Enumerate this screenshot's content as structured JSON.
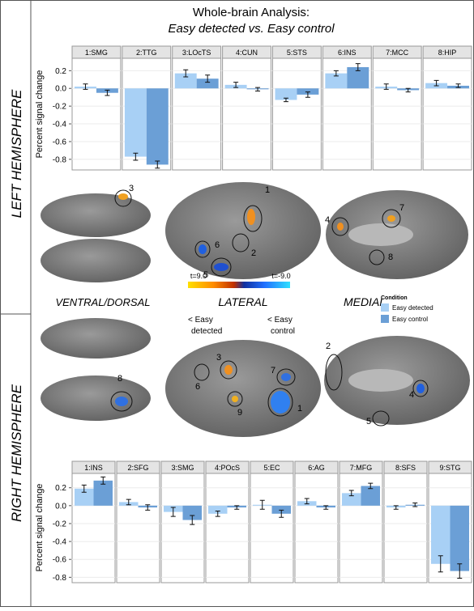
{
  "chart_data": [
    {
      "type": "bar",
      "title": "Whole-brain Analysis:",
      "subtitle": "Easy detected vs. Easy control",
      "hemisphere": "LEFT HEMISPHERE",
      "ylabel": "Percent signal change",
      "legend_title": "Condition",
      "categories": [
        "1:SMG",
        "2:TTG",
        "3:LOcTS",
        "4:CUN",
        "5:STS",
        "6:INS",
        "7:MCC",
        "8:HIP"
      ],
      "series": [
        {
          "name": "Easy detected",
          "color": "#a8d0f5",
          "values": [
            0.02,
            -0.77,
            0.17,
            0.04,
            -0.13,
            0.17,
            0.02,
            0.06
          ],
          "errors": [
            0.03,
            0.04,
            0.04,
            0.03,
            0.02,
            0.03,
            0.03,
            0.03
          ]
        },
        {
          "name": "Easy control",
          "color": "#6b9fd6",
          "values": [
            -0.05,
            -0.86,
            0.11,
            -0.01,
            -0.07,
            0.24,
            -0.02,
            0.03
          ],
          "errors": [
            0.03,
            0.04,
            0.04,
            0.02,
            0.03,
            0.04,
            0.02,
            0.02
          ]
        }
      ],
      "ylim": [
        -0.92,
        0.34
      ],
      "yticks": [
        -0.8,
        -0.6,
        -0.4,
        -0.2,
        {
          "value": 0,
          "label": "0.0"
        },
        0.2
      ],
      "grid": true
    },
    {
      "type": "bar",
      "hemisphere": "RIGHT HEMISPHERE",
      "ylabel": "Percent signal change",
      "categories": [
        "1:INS",
        "2:SFG",
        "3:SMG",
        "4:POcS",
        "5:EC",
        "6:AG",
        "7:MFG",
        "8:SFS",
        "9:STG"
      ],
      "series": [
        {
          "color": "#a8d0f5",
          "values": [
            0.19,
            0.04,
            -0.07,
            -0.09,
            0.01,
            0.05,
            0.14,
            -0.02,
            -0.65
          ],
          "errors": [
            0.04,
            0.03,
            0.05,
            0.03,
            0.05,
            0.03,
            0.03,
            0.02,
            0.09
          ]
        },
        {
          "color": "#6b9fd6",
          "values": [
            0.28,
            -0.02,
            -0.16,
            -0.02,
            -0.09,
            -0.02,
            0.22,
            0.01,
            -0.73
          ],
          "errors": [
            0.04,
            0.03,
            0.05,
            0.02,
            0.04,
            0.02,
            0.03,
            0.02,
            0.08
          ]
        }
      ],
      "ylim": [
        -0.86,
        0.36
      ],
      "yticks": [
        -0.8,
        -0.6,
        -0.4,
        -0.2,
        {
          "value": 0,
          "label": "0.0"
        },
        0.2
      ],
      "grid": true
    }
  ],
  "brain_panel": {
    "views": [
      "VENTRAL/DORSAL",
      "LATERAL",
      "MEDIAL"
    ],
    "colorbar": {
      "left_label": "t=9.0",
      "right_label": "t=-9.0",
      "left_note": [
        "< Easy",
        "detected"
      ],
      "right_note": [
        "< Easy",
        "control"
      ]
    },
    "left_markers": [
      "3",
      "1",
      "2",
      "6",
      "5",
      "4",
      "7",
      "8"
    ],
    "right_markers": [
      "8",
      "3",
      "6",
      "7",
      "9",
      "1",
      "2",
      "4",
      "5"
    ]
  }
}
